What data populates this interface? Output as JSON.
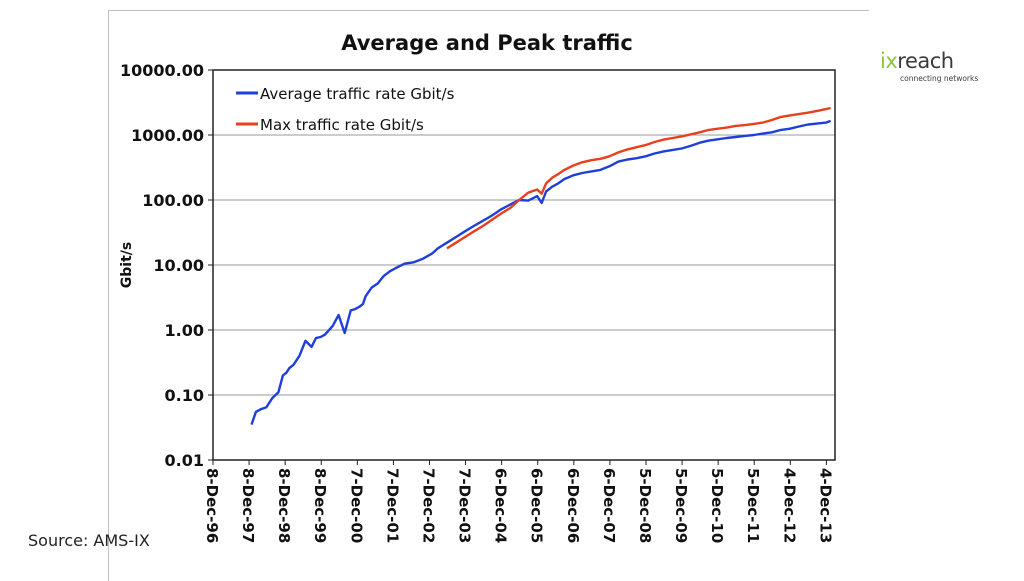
{
  "source": "Source: AMS-IX",
  "logo": {
    "ix": "ix",
    "reach": "reach",
    "tagline": "connecting networks"
  },
  "chart_data": {
    "type": "line",
    "title": "Average and Peak traffic",
    "xlabel": "",
    "ylabel": "Gbit/s",
    "yscale": "log",
    "ylim": [
      0.01,
      10000
    ],
    "ytick_labels": [
      "0.01",
      "0.10",
      "1.00",
      "10.00",
      "100.00",
      "1000.00",
      "10000.00"
    ],
    "yticks": [
      0.01,
      0.1,
      1,
      10,
      100,
      1000,
      10000
    ],
    "xlim": [
      "1996-12-08",
      "2014-03-01"
    ],
    "xtick_labels": [
      "8-Dec-96",
      "8-Dec-97",
      "8-Dec-98",
      "8-Dec-99",
      "7-Dec-00",
      "7-Dec-01",
      "7-Dec-02",
      "7-Dec-03",
      "6-Dec-04",
      "6-Dec-05",
      "6-Dec-06",
      "6-Dec-07",
      "5-Dec-08",
      "5-Dec-09",
      "5-Dec-10",
      "5-Dec-11",
      "4-Dec-12",
      "4-Dec-13"
    ],
    "xticks": [
      "1996-12-08",
      "1997-12-08",
      "1998-12-08",
      "1999-12-08",
      "2000-12-07",
      "2001-12-07",
      "2002-12-07",
      "2003-12-07",
      "2004-12-06",
      "2005-12-06",
      "2006-12-06",
      "2007-12-06",
      "2008-12-05",
      "2009-12-05",
      "2010-12-05",
      "2011-12-05",
      "2012-12-04",
      "2013-12-04"
    ],
    "grid": true,
    "legend": "top-left",
    "series": [
      {
        "name": "Average traffic rate Gbit/s",
        "color": "#1f3fd8",
        "x": [
          "1998-01-01",
          "1998-02-15",
          "1998-04-01",
          "1998-06-01",
          "1998-08-01",
          "1998-10-01",
          "1998-11-15",
          "1998-12-20",
          "1999-01-20",
          "1999-03-01",
          "1999-05-01",
          "1999-07-01",
          "1999-09-01",
          "1999-10-15",
          "1999-12-01",
          "2000-01-15",
          "2000-04-01",
          "2000-06-01",
          "2000-08-01",
          "2000-10-01",
          "2000-11-15",
          "2001-01-01",
          "2001-02-01",
          "2001-03-01",
          "2001-05-01",
          "2001-07-01",
          "2001-09-01",
          "2001-11-01",
          "2002-01-01",
          "2002-04-01",
          "2002-07-01",
          "2002-10-01",
          "2003-01-01",
          "2003-03-01",
          "2003-06-01",
          "2003-09-01",
          "2003-12-01",
          "2004-03-01",
          "2004-06-01",
          "2004-09-01",
          "2004-12-01",
          "2005-03-01",
          "2005-06-01",
          "2005-09-01",
          "2005-12-01",
          "2006-01-15",
          "2006-03-01",
          "2006-05-01",
          "2006-07-01",
          "2006-09-01",
          "2006-12-01",
          "2007-03-01",
          "2007-06-01",
          "2007-09-01",
          "2007-12-01",
          "2008-03-01",
          "2008-06-01",
          "2008-09-01",
          "2008-12-01",
          "2009-03-01",
          "2009-06-01",
          "2009-09-01",
          "2009-12-01",
          "2010-03-01",
          "2010-06-01",
          "2010-09-01",
          "2010-12-01",
          "2011-03-01",
          "2011-06-01",
          "2011-09-01",
          "2011-12-01",
          "2012-03-01",
          "2012-06-01",
          "2012-09-01",
          "2012-12-01",
          "2013-03-01",
          "2013-06-01",
          "2013-09-01",
          "2013-12-01",
          "2014-01-15"
        ],
        "values": [
          0.035,
          0.055,
          0.06,
          0.065,
          0.09,
          0.11,
          0.2,
          0.22,
          0.26,
          0.29,
          0.4,
          0.68,
          0.55,
          0.75,
          0.78,
          0.85,
          1.15,
          1.7,
          0.9,
          2.0,
          2.1,
          2.3,
          2.5,
          3.3,
          4.5,
          5.2,
          6.8,
          8.0,
          9.0,
          10.5,
          11.0,
          12.5,
          15.0,
          18.0,
          22.0,
          27.0,
          33.0,
          40.0,
          48.0,
          58.0,
          72.0,
          85.0,
          100.0,
          98.0,
          115.0,
          90.0,
          135.0,
          160.0,
          180.0,
          210.0,
          240.0,
          260.0,
          275.0,
          290.0,
          330.0,
          390.0,
          420.0,
          440.0,
          470.0,
          520.0,
          560.0,
          590.0,
          620.0,
          680.0,
          760.0,
          820.0,
          860.0,
          900.0,
          930.0,
          970.0,
          1000.0,
          1050.0,
          1100.0,
          1200.0,
          1250.0,
          1350.0,
          1450.0,
          1500.0,
          1550.0,
          1650.0
        ]
      },
      {
        "name": "Max traffic rate Gbit/s",
        "color": "#e8401c",
        "x": [
          "2003-06-01",
          "2003-09-01",
          "2003-12-01",
          "2004-03-01",
          "2004-06-01",
          "2004-09-01",
          "2004-12-01",
          "2005-03-01",
          "2005-06-01",
          "2005-09-01",
          "2005-12-01",
          "2006-01-15",
          "2006-03-01",
          "2006-05-01",
          "2006-07-01",
          "2006-09-01",
          "2006-12-01",
          "2007-03-01",
          "2007-06-01",
          "2007-09-01",
          "2007-12-01",
          "2008-03-01",
          "2008-06-01",
          "2008-09-01",
          "2008-12-01",
          "2009-03-01",
          "2009-06-01",
          "2009-09-01",
          "2009-12-01",
          "2010-03-01",
          "2010-06-01",
          "2010-09-01",
          "2010-12-01",
          "2011-03-01",
          "2011-06-01",
          "2011-09-01",
          "2011-12-01",
          "2012-03-01",
          "2012-06-01",
          "2012-09-01",
          "2012-12-01",
          "2013-03-01",
          "2013-06-01",
          "2013-09-01",
          "2013-12-01",
          "2014-01-15"
        ],
        "values": [
          18.0,
          22.0,
          27.0,
          33.0,
          40.0,
          50.0,
          62.0,
          75.0,
          100.0,
          130.0,
          145.0,
          125.0,
          180.0,
          220.0,
          250.0,
          290.0,
          340.0,
          380.0,
          410.0,
          430.0,
          470.0,
          540.0,
          600.0,
          650.0,
          700.0,
          780.0,
          850.0,
          900.0,
          950.0,
          1020.0,
          1100.0,
          1200.0,
          1250.0,
          1300.0,
          1380.0,
          1420.0,
          1480.0,
          1550.0,
          1700.0,
          1900.0,
          2000.0,
          2100.0,
          2200.0,
          2350.0,
          2500.0,
          2600.0
        ]
      }
    ]
  }
}
